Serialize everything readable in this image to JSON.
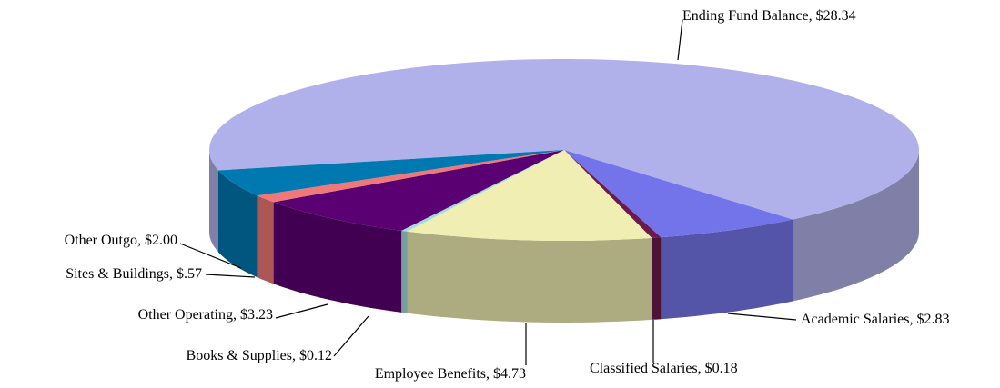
{
  "chart_data": {
    "type": "pie",
    "style": "3d",
    "categories": [
      "Ending Fund Balance",
      "Academic Salaries",
      "Classified Salaries",
      "Employee Benefits",
      "Books & Supplies",
      "Other Operating",
      "Sites & Buildings",
      "Other Outgo"
    ],
    "values": [
      28.34,
      2.83,
      0.18,
      4.73,
      0.12,
      3.23,
      0.57,
      2.0
    ],
    "value_labels": [
      "$28.34",
      "$2.83",
      "$0.18",
      "$4.73",
      "$0.12",
      "$3.23",
      "$.57",
      "$2.00"
    ],
    "label_separator": ", ",
    "colors": [
      "#b0b0ea",
      "#7474ea",
      "#6a1a4c",
      "#f0eeb2",
      "#a4dcdc",
      "#5a0072",
      "#f07878",
      "#0078b0"
    ]
  }
}
